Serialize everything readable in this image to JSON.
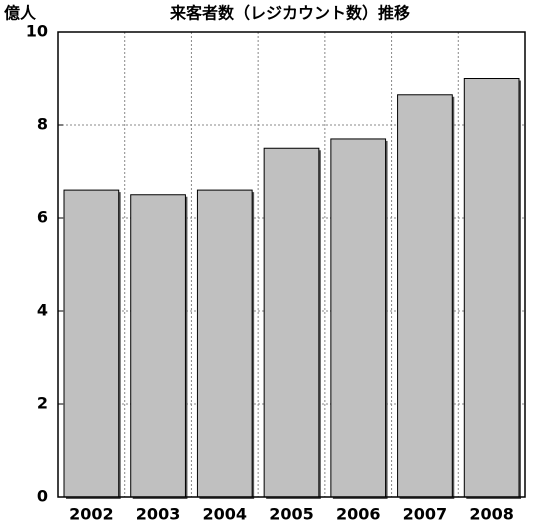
{
  "chart_data": {
    "type": "bar",
    "title": "来客者数（レジカウント数）推移",
    "y_label": "億人",
    "categories": [
      "2002",
      "2003",
      "2004",
      "2005",
      "2006",
      "2007",
      "2008"
    ],
    "values": [
      6.6,
      6.5,
      6.6,
      7.5,
      7.7,
      8.65,
      9.0
    ],
    "color": "#c0c0c0",
    "ylim": [
      0,
      10
    ],
    "yticks": [
      0,
      2,
      4,
      6,
      8,
      10
    ],
    "grid": true
  }
}
